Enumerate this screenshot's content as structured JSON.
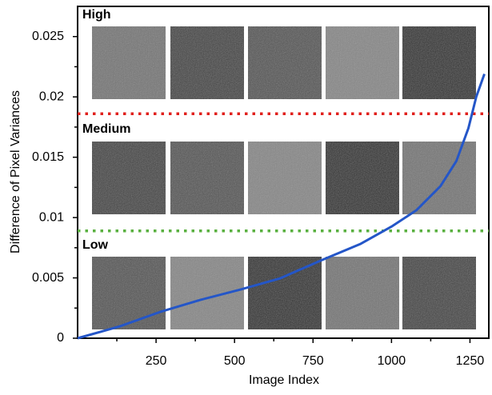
{
  "chart_data": {
    "type": "line",
    "xlabel": "Image Index",
    "ylabel": "Difference of Pixel Variances",
    "series": [
      {
        "color": "#2456c8",
        "x": [
          0,
          135,
          263,
          390,
          518,
          645,
          773,
          900,
          1003,
          1079,
          1156,
          1207,
          1245,
          1270,
          1296
        ],
        "values": [
          0,
          0.00099,
          0.00218,
          0.00317,
          0.00403,
          0.00496,
          0.00642,
          0.0078,
          0.0093,
          0.0106,
          0.0126,
          0.0147,
          0.0174,
          0.02,
          0.0219
        ]
      }
    ],
    "thresholds": [
      {
        "value": 0.0186,
        "color": "#e0201c"
      },
      {
        "value": 0.0089,
        "color": "#5ab040"
      }
    ],
    "regions": [
      "High",
      "Medium",
      "Low"
    ],
    "xlim": [
      0,
      1310
    ],
    "ylim": [
      0,
      0.0275
    ],
    "xticks": [
      250,
      500,
      750,
      1000,
      1250
    ],
    "xminor_ticks": [
      125,
      375,
      625,
      875,
      1125
    ],
    "yticks": [
      0,
      0.005,
      0.01,
      0.015,
      0.02,
      0.025
    ],
    "yminor_ticks": [
      0.0025,
      0.0075,
      0.0125,
      0.0175,
      0.0225
    ]
  }
}
